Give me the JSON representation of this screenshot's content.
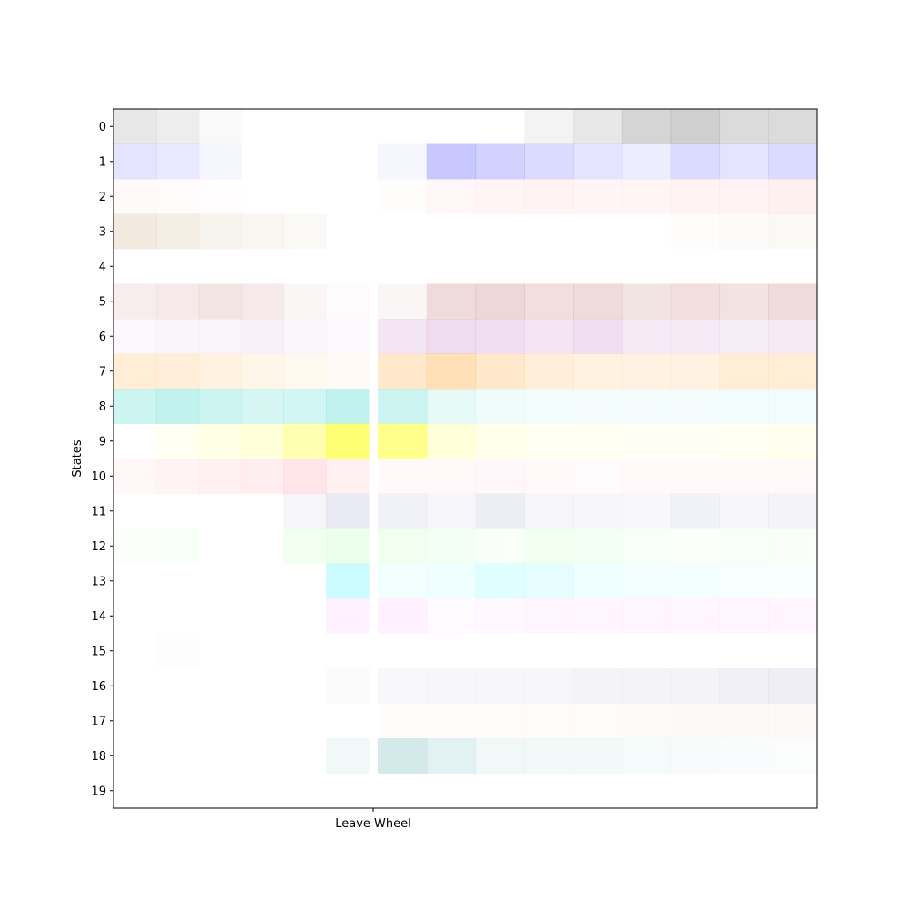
{
  "chart_data": {
    "type": "heatmap",
    "title": "",
    "xlabel": "",
    "ylabel": "States",
    "x_ticks": [
      "Leave Wheel"
    ],
    "states": [
      "0",
      "1",
      "2",
      "3",
      "4",
      "5",
      "6",
      "7",
      "8",
      "9",
      "10",
      "11",
      "12",
      "13",
      "14",
      "15",
      "16",
      "17",
      "18",
      "19"
    ],
    "event_column": 6,
    "n_columns": 16,
    "colors": [
      "#888888",
      "#4a4aff",
      "#ff9a9a",
      "#b58a50",
      "#cccccc",
      "#b04a4a",
      "#b050b0",
      "#ffa532",
      "#32d4c8",
      "#ffff00",
      "#ff6a80",
      "#5050a8",
      "#78ff78",
      "#32f0ff",
      "#ff50ff",
      "#aaaaaa",
      "#7070a8",
      "#c8a070",
      "#3aa0a0",
      "#888888"
    ],
    "intensity": [
      [
        0.2,
        0.15,
        0.05,
        0,
        0,
        0,
        0,
        0,
        0,
        0,
        0.1,
        0.2,
        0.35,
        0.4,
        0.3,
        0.3
      ],
      [
        0.15,
        0.12,
        0.05,
        0,
        0,
        0,
        0,
        0.05,
        0.3,
        0.25,
        0.2,
        0.15,
        0.1,
        0.2,
        0.15,
        0.2
      ],
      [
        0.05,
        0.04,
        0.02,
        0,
        0,
        0,
        0,
        0.03,
        0.08,
        0.1,
        0.12,
        0.1,
        0.1,
        0.12,
        0.12,
        0.15
      ],
      [
        0.18,
        0.15,
        0.1,
        0.08,
        0.05,
        0,
        0,
        0,
        0,
        0,
        0,
        0,
        0,
        0.02,
        0.03,
        0.05
      ],
      [
        0,
        0,
        0,
        0,
        0,
        0,
        0,
        0,
        0,
        0,
        0,
        0,
        0,
        0,
        0,
        0
      ],
      [
        0.1,
        0.12,
        0.14,
        0.12,
        0.05,
        0.02,
        0,
        0.05,
        0.2,
        0.22,
        0.18,
        0.2,
        0.15,
        0.18,
        0.16,
        0.2
      ],
      [
        0.04,
        0.06,
        0.06,
        0.08,
        0.05,
        0.03,
        0,
        0.15,
        0.2,
        0.18,
        0.15,
        0.18,
        0.12,
        0.12,
        0.1,
        0.12
      ],
      [
        0.2,
        0.18,
        0.15,
        0.1,
        0.08,
        0.05,
        0,
        0.25,
        0.35,
        0.25,
        0.18,
        0.15,
        0.14,
        0.14,
        0.2,
        0.2
      ],
      [
        0.25,
        0.3,
        0.25,
        0.2,
        0.22,
        0.3,
        0,
        0.25,
        0.12,
        0.08,
        0.06,
        0.05,
        0.05,
        0.05,
        0.06,
        0.06
      ],
      [
        0,
        0.05,
        0.1,
        0.15,
        0.3,
        0.55,
        0,
        0.45,
        0.15,
        0.08,
        0.05,
        0.05,
        0.04,
        0.04,
        0.05,
        0.06
      ],
      [
        0.06,
        0.08,
        0.1,
        0.12,
        0.18,
        0.1,
        0,
        0.04,
        0.04,
        0.05,
        0.04,
        0.03,
        0.04,
        0.04,
        0.04,
        0.04
      ],
      [
        0,
        0,
        0,
        0,
        0.06,
        0.12,
        0,
        0.08,
        0.05,
        0.1,
        0.06,
        0.05,
        0.04,
        0.08,
        0.05,
        0.07
      ],
      [
        0.04,
        0.05,
        0,
        0,
        0.1,
        0.15,
        0,
        0.1,
        0.08,
        0.06,
        0.1,
        0.08,
        0.05,
        0.04,
        0.05,
        0.06
      ],
      [
        0,
        0,
        0,
        0,
        0,
        0.25,
        0,
        0.06,
        0.08,
        0.15,
        0.12,
        0.08,
        0.06,
        0.06,
        0.04,
        0.03
      ],
      [
        0,
        0,
        0,
        0,
        0,
        0.08,
        0,
        0.08,
        0.03,
        0.04,
        0.06,
        0.05,
        0.06,
        0.05,
        0.06,
        0.05
      ],
      [
        0,
        0.02,
        0,
        0,
        0,
        0,
        0,
        0,
        0,
        0,
        0,
        0,
        0,
        0,
        0,
        0
      ],
      [
        0,
        0,
        0,
        0,
        0,
        0.03,
        0,
        0.05,
        0.06,
        0.06,
        0.06,
        0.08,
        0.08,
        0.08,
        0.1,
        0.12
      ],
      [
        0,
        0,
        0,
        0,
        0,
        0,
        0,
        0.02,
        0.02,
        0.03,
        0.03,
        0.03,
        0.04,
        0.05,
        0.06,
        0.06
      ],
      [
        0,
        0,
        0,
        0,
        0,
        0.08,
        0,
        0.22,
        0.15,
        0.08,
        0.06,
        0.06,
        0.05,
        0.04,
        0.03,
        0.02
      ],
      [
        0,
        0,
        0,
        0,
        0,
        0,
        0,
        0,
        0,
        0,
        0,
        0,
        0,
        0,
        0,
        0
      ]
    ]
  }
}
